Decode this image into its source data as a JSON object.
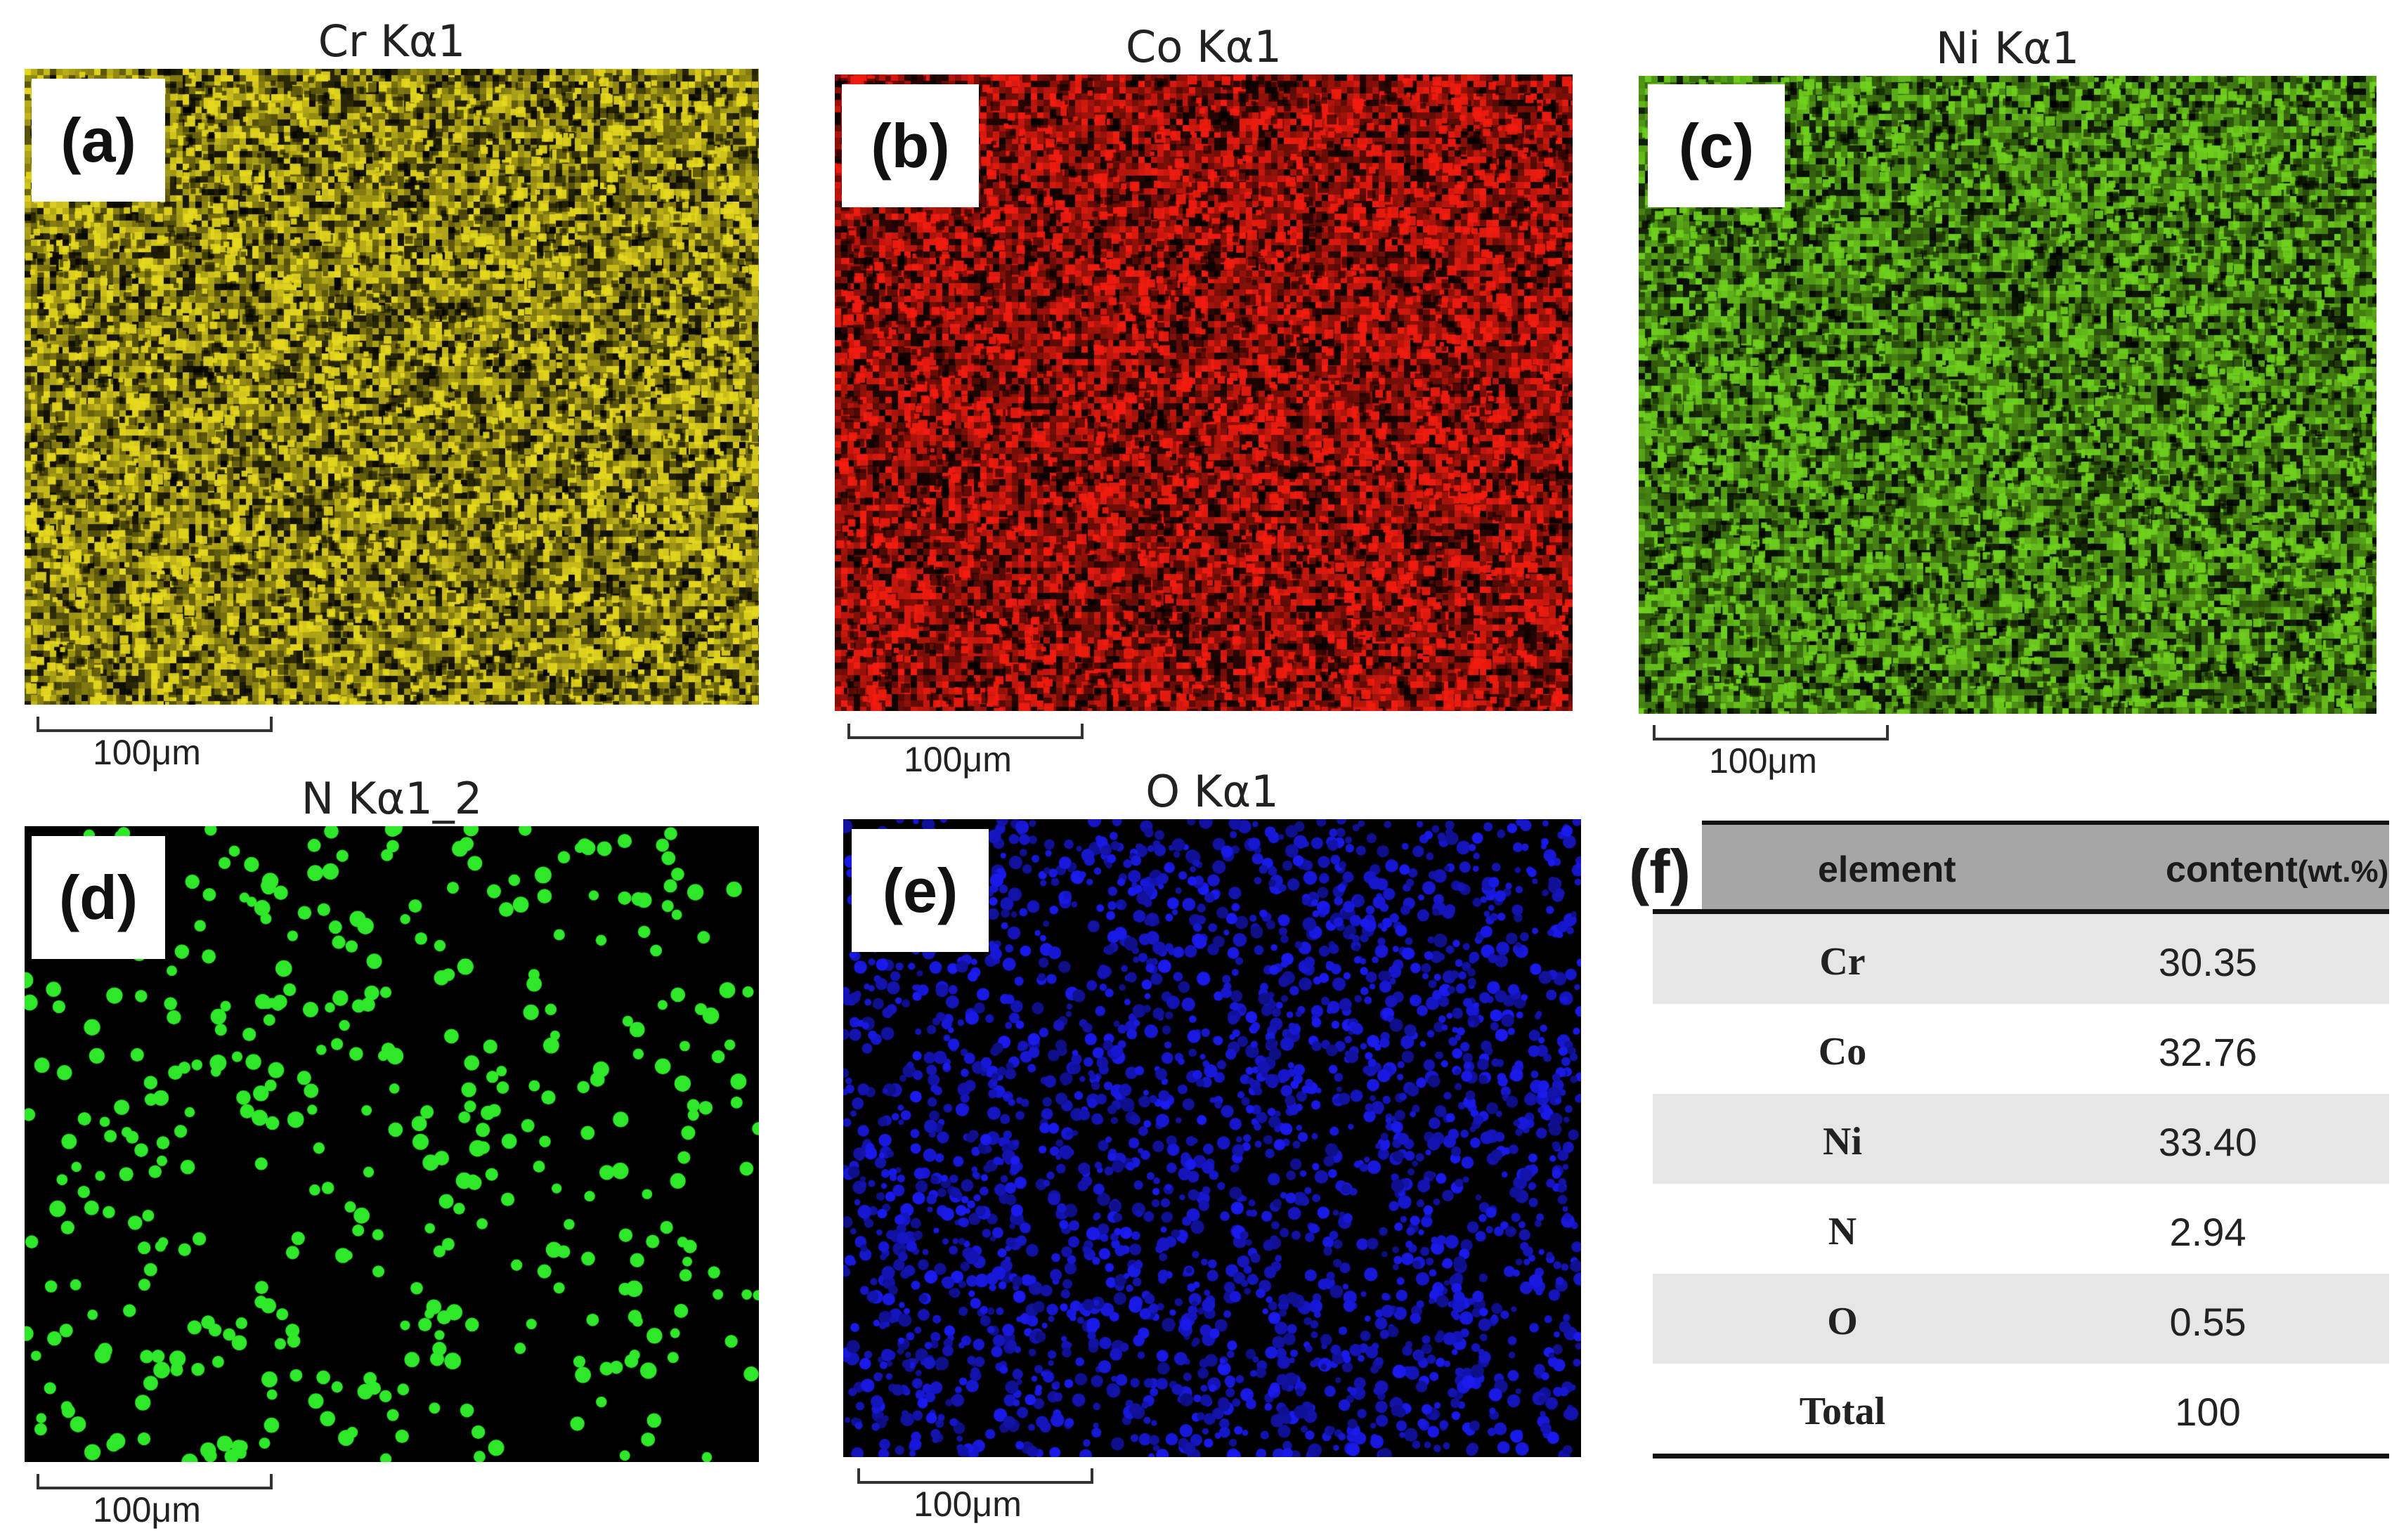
{
  "panels": [
    {
      "id": "a",
      "tag": "(a)",
      "title": "Cr Kα1",
      "scale": "100μm",
      "color": "#e6d81e",
      "mode": "dense"
    },
    {
      "id": "b",
      "tag": "(b)",
      "title": "Co Kα1",
      "scale": "100μm",
      "color": "#f21c10",
      "mode": "dense"
    },
    {
      "id": "c",
      "tag": "(c)",
      "title": "Ni Kα1",
      "scale": "100μm",
      "color": "#6fd01e",
      "mode": "dense"
    },
    {
      "id": "d",
      "tag": "(d)",
      "title": "N Kα1_2",
      "scale": "100μm",
      "color": "#2fe82a",
      "mode": "sparse"
    },
    {
      "id": "e",
      "tag": "(e)",
      "title": "O Kα1",
      "scale": "100μm",
      "color": "#1a1af0",
      "mode": "medium"
    }
  ],
  "table": {
    "tag": "(f)",
    "headers": {
      "element": "element",
      "content": "content",
      "unit": "(wt.%)"
    },
    "rows": [
      {
        "element": "Cr",
        "value": "30.35"
      },
      {
        "element": "Co",
        "value": "32.76"
      },
      {
        "element": "Ni",
        "value": "33.40"
      },
      {
        "element": "N",
        "value": "2.94"
      },
      {
        "element": "O",
        "value": "0.55"
      },
      {
        "element": "Total",
        "value": "100"
      }
    ]
  }
}
